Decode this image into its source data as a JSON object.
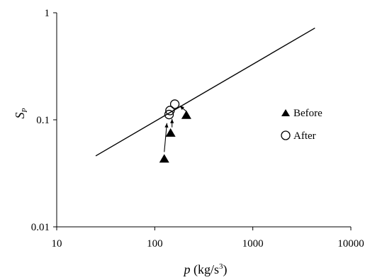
{
  "chart_data": {
    "type": "scatter",
    "xscale": "log",
    "yscale": "log",
    "xlim": [
      10,
      10000
    ],
    "ylim": [
      0.01,
      1
    ],
    "xticks": [
      10,
      100,
      1000,
      10000
    ],
    "xtick_labels": [
      "10",
      "100",
      "1000",
      "10000"
    ],
    "yticks": [
      0.01,
      0.1,
      1
    ],
    "ytick_labels": [
      "0.01",
      "0.1",
      "1"
    ],
    "xlabel": {
      "var": "p",
      "unit": " (kg/s",
      "sup": "3",
      "close": ")"
    },
    "ylabel": {
      "var": "S",
      "sub": "P"
    },
    "grid": false,
    "legend_position": "right",
    "series": [
      {
        "name": "Before",
        "marker": "filled-triangle",
        "color": "#000000",
        "x": [
          125,
          145,
          210
        ],
        "y": [
          0.043,
          0.075,
          0.11
        ]
      },
      {
        "name": "After",
        "marker": "open-circle",
        "color": "#000000",
        "x": [
          140,
          143,
          160
        ],
        "y": [
          0.112,
          0.122,
          0.14
        ]
      }
    ],
    "trend_line": {
      "x": [
        25,
        4300
      ],
      "y": [
        0.046,
        0.72
      ]
    },
    "arrows": [
      {
        "from": [
          125,
          0.05
        ],
        "to": [
          133,
          0.093
        ]
      },
      {
        "from": [
          150,
          0.085
        ],
        "to": [
          150,
          0.102
        ]
      },
      {
        "from": [
          210,
          0.12
        ],
        "to": [
          180,
          0.135
        ]
      }
    ]
  }
}
